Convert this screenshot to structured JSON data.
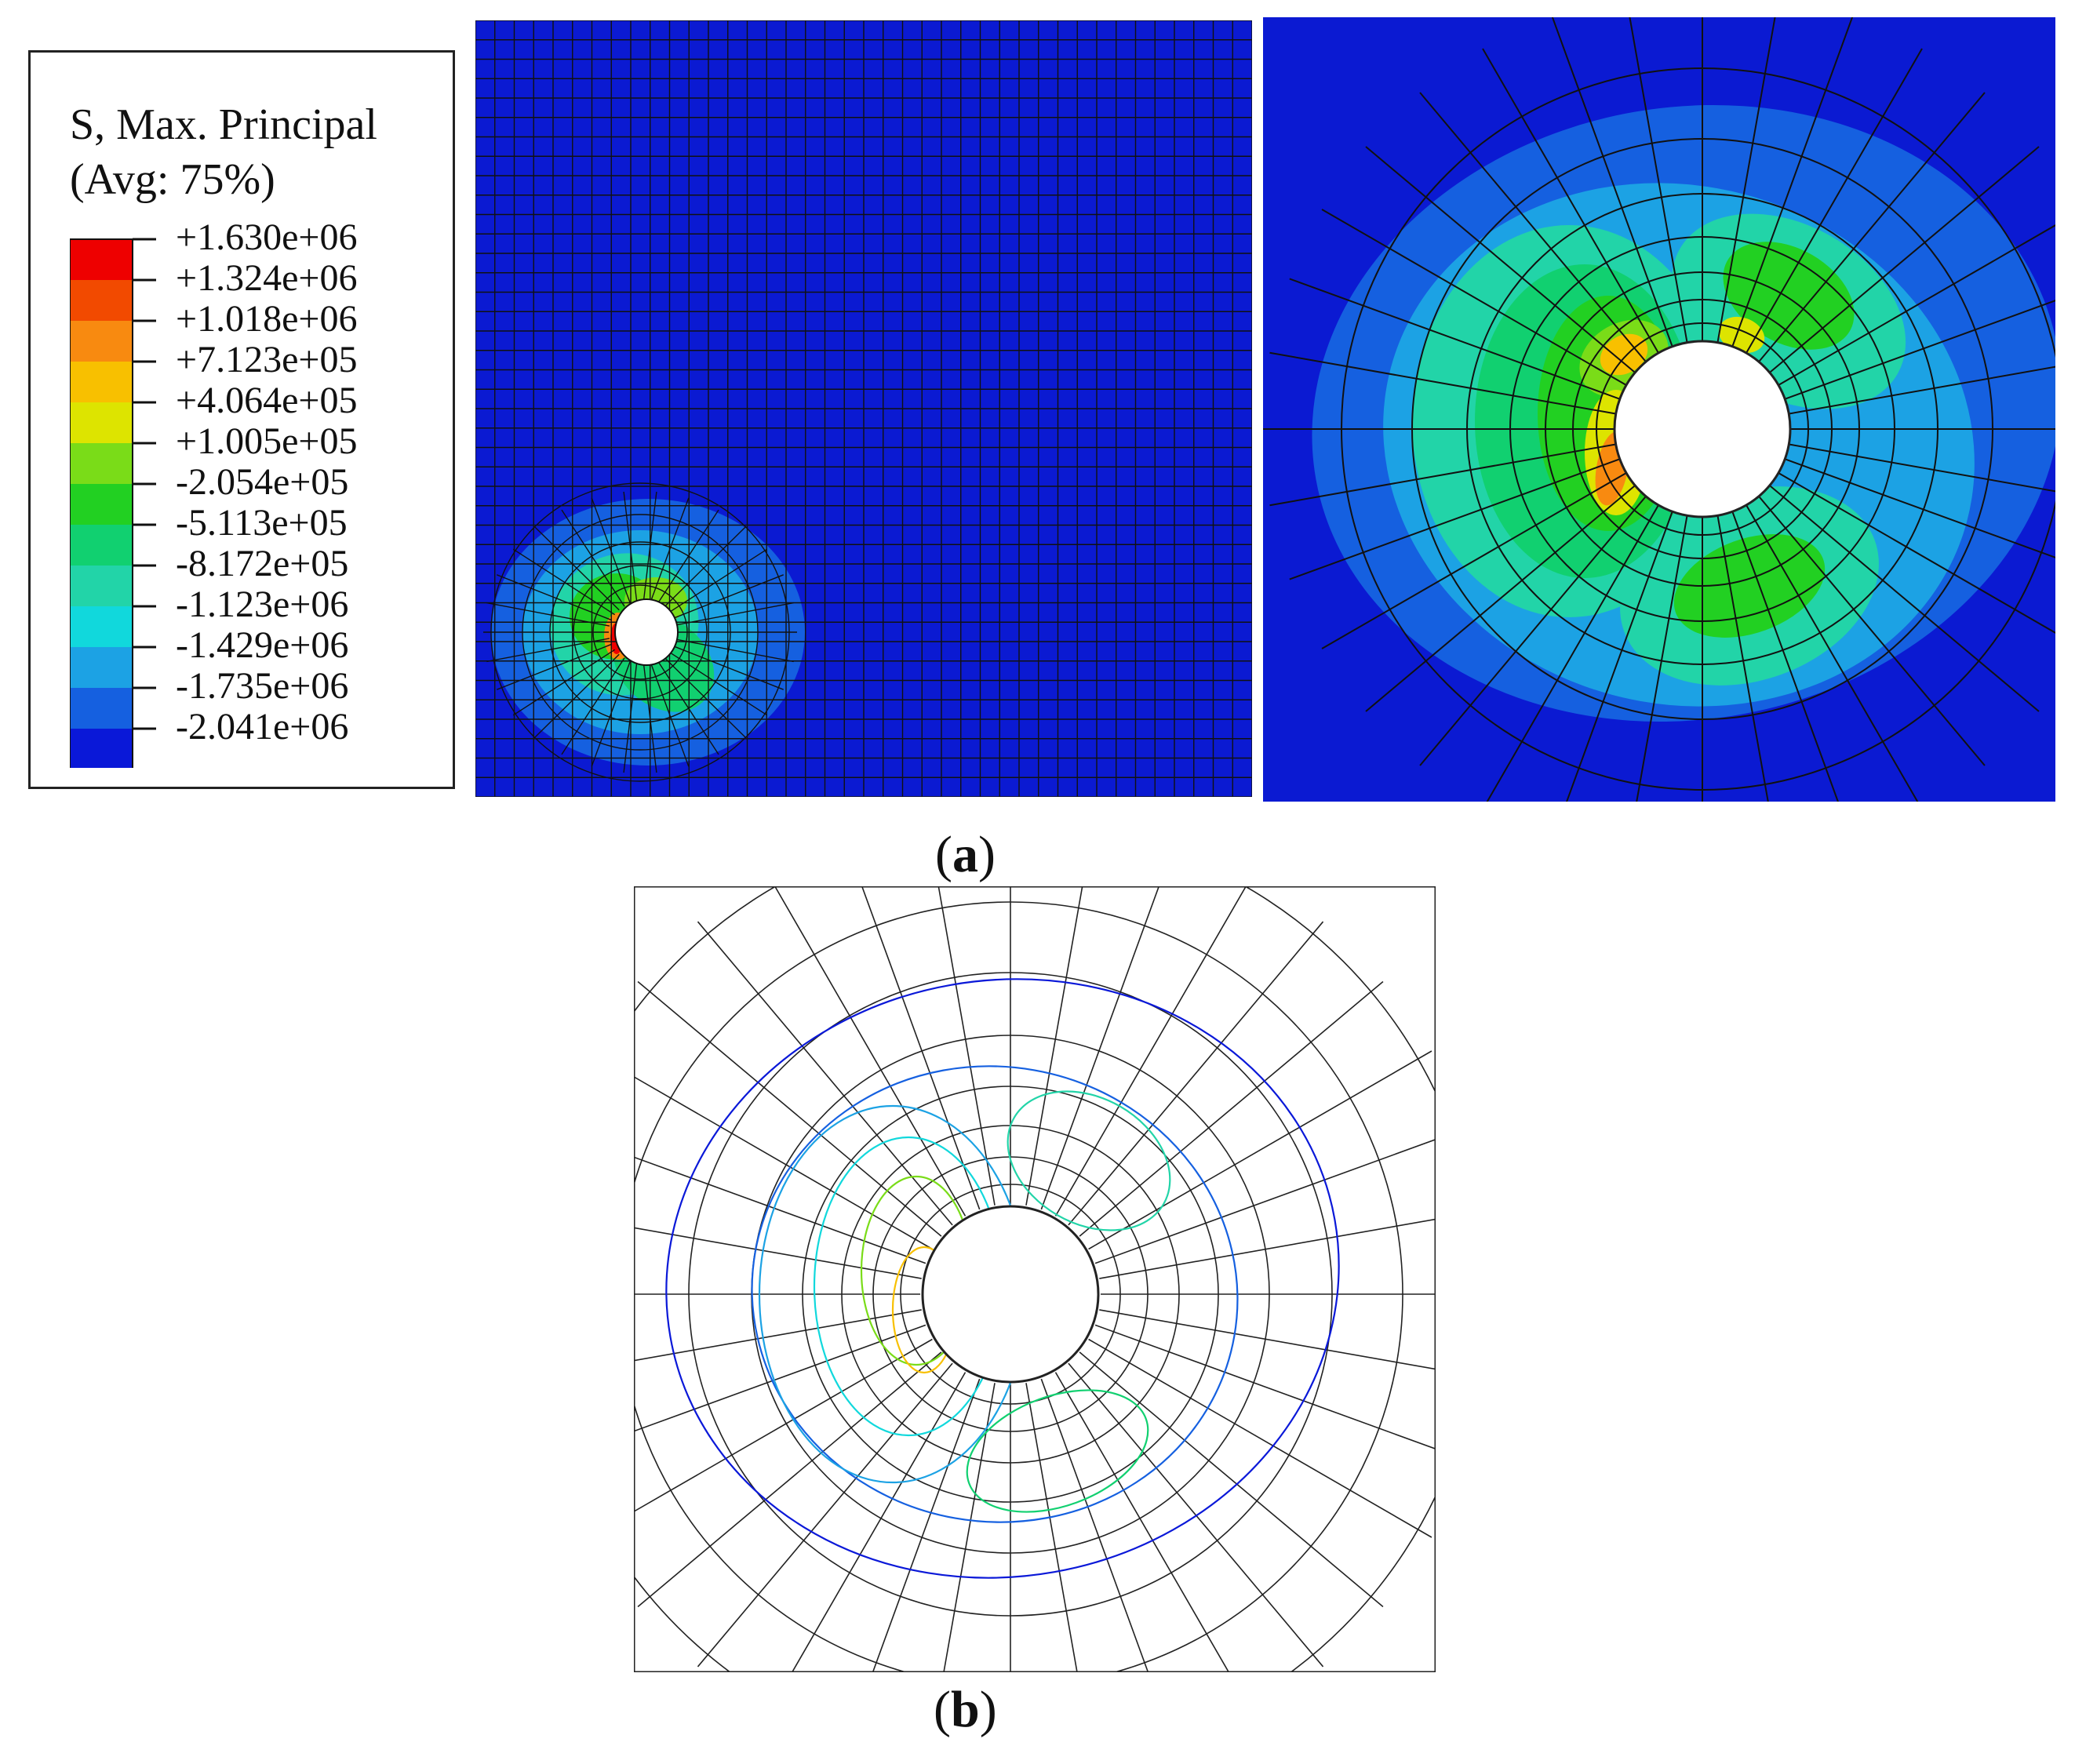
{
  "legend": {
    "title_line1": "S, Max. Principal",
    "title_line2": "(Avg: 75%)",
    "entries": [
      {
        "label": "+1.630e+06",
        "color": "#ee0000"
      },
      {
        "label": "+1.324e+06",
        "color": "#f24a00"
      },
      {
        "label": "+1.018e+06",
        "color": "#f88a10"
      },
      {
        "label": "+7.123e+05",
        "color": "#f8c000"
      },
      {
        "label": "+4.064e+05",
        "color": "#dde400"
      },
      {
        "label": "+1.005e+05",
        "color": "#7adc18"
      },
      {
        "label": "-2.054e+05",
        "color": "#22d022"
      },
      {
        "label": "-5.113e+05",
        "color": "#11d070"
      },
      {
        "label": "-8.172e+05",
        "color": "#22d4a8"
      },
      {
        "label": "-1.123e+06",
        "color": "#11d8dc"
      },
      {
        "label": "-1.429e+06",
        "color": "#1ca2e4"
      },
      {
        "label": "-1.735e+06",
        "color": "#1560e0"
      },
      {
        "label": "-2.041e+06",
        "color": "#0a18d8"
      }
    ]
  },
  "captions": {
    "a_open": "(",
    "a_letter": "a",
    "a_close": ")",
    "b_open": "(",
    "b_letter": "b",
    "b_close": ")"
  },
  "colors": {
    "background_field": "#0b1ad2",
    "mesh_line": "#111111"
  }
}
